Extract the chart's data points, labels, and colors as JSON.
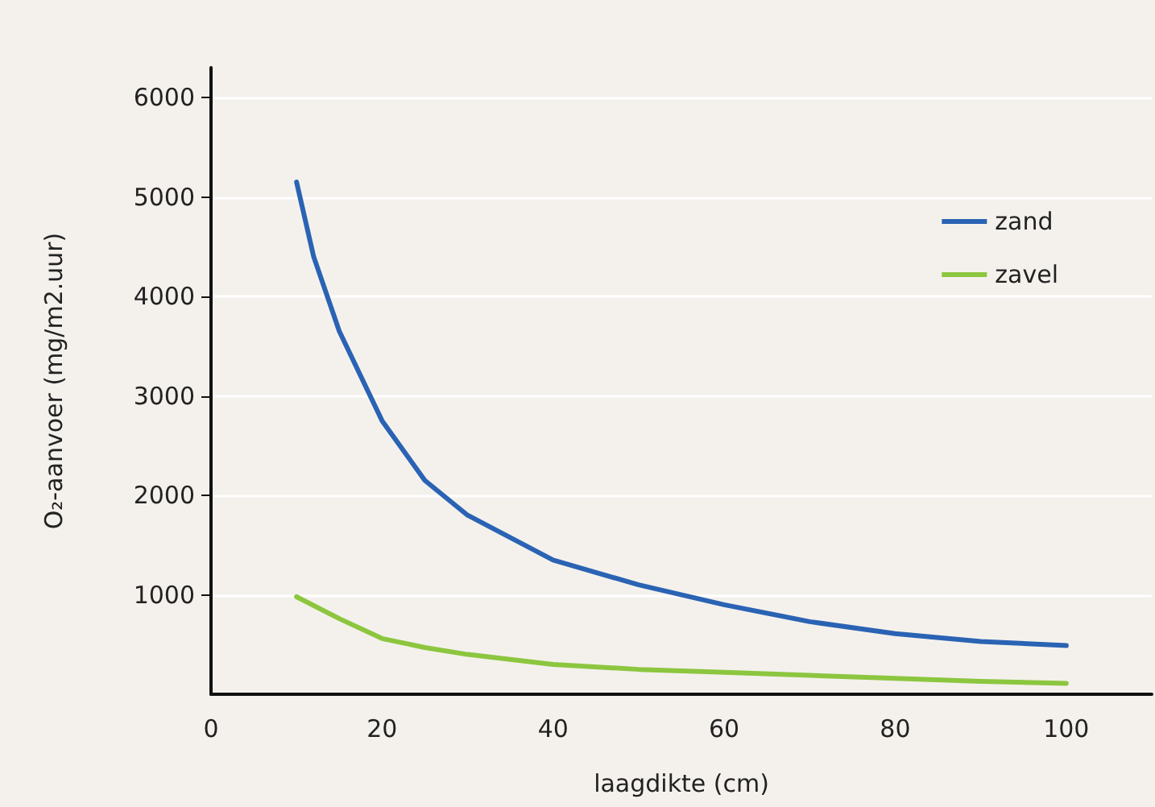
{
  "chart_data": {
    "type": "line",
    "xlabel": "laagdikte (cm)",
    "ylabel": "O₂-aanvoer (mg/m2.uur)",
    "series": [
      {
        "name": "zand",
        "color": "#2a63b4",
        "x": [
          10,
          12,
          15,
          20,
          25,
          30,
          40,
          50,
          60,
          70,
          80,
          90,
          100
        ],
        "values": [
          5150,
          4400,
          3650,
          2750,
          2150,
          1800,
          1350,
          1100,
          900,
          730,
          610,
          530,
          490
        ]
      },
      {
        "name": "zavel",
        "color": "#8cc63f",
        "x": [
          10,
          15,
          20,
          25,
          30,
          40,
          50,
          60,
          70,
          80,
          90,
          100
        ],
        "values": [
          980,
          760,
          560,
          470,
          400,
          300,
          250,
          220,
          190,
          160,
          130,
          110
        ]
      }
    ],
    "xlim": [
      0,
      110
    ],
    "xticks": [
      0,
      20,
      40,
      60,
      80,
      100
    ],
    "ylim": [
      0,
      6300
    ],
    "yticks": [
      1000,
      2000,
      3000,
      4000,
      5000,
      6000
    ],
    "grid": "y",
    "legend": "top right",
    "marker": "none",
    "line_style": "solid"
  }
}
